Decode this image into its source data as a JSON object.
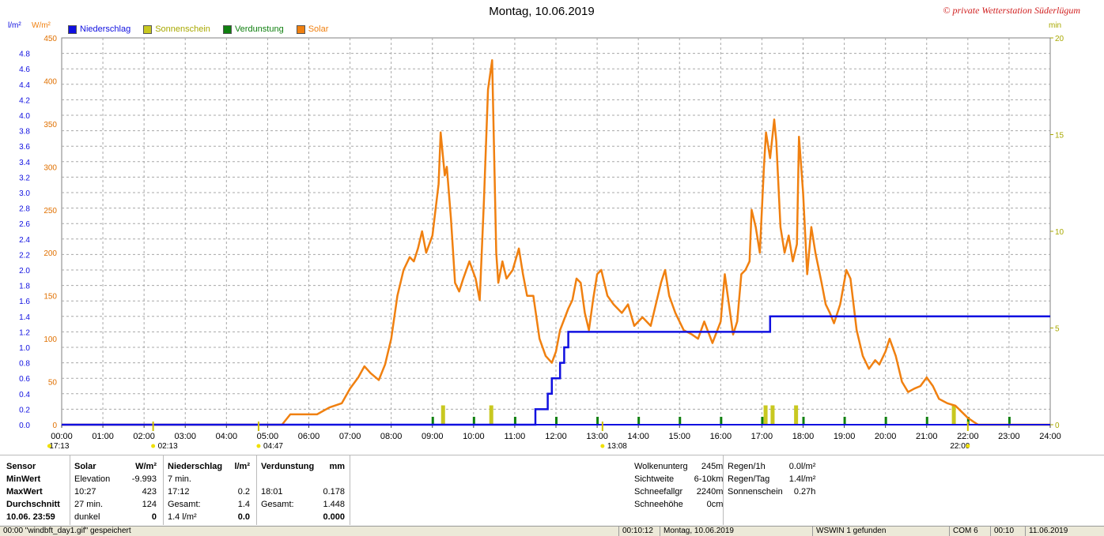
{
  "title": "Montag, 10.06.2019",
  "copyright": "© private Wetterstation Süderlügum",
  "units": {
    "left1": "l/m²",
    "left2": "W/m²",
    "right": "min"
  },
  "legend": [
    {
      "label": "Niederschlag",
      "color": "#1010e0",
      "text_color": "#1010e0"
    },
    {
      "label": "Sonnenschein",
      "color": "#c8c820",
      "text_color": "#a8a800"
    },
    {
      "label": "Verdunstung",
      "color": "#108010",
      "text_color": "#108010"
    },
    {
      "label": "Solar",
      "color": "#f08010",
      "text_color": "#f08010"
    }
  ],
  "chart_data": {
    "type": "line",
    "x_ticks": [
      "00:00",
      "01:00",
      "02:00",
      "03:00",
      "04:00",
      "05:00",
      "06:00",
      "07:00",
      "08:00",
      "09:00",
      "10:00",
      "11:00",
      "12:00",
      "13:00",
      "14:00",
      "15:00",
      "16:00",
      "17:00",
      "18:00",
      "19:00",
      "20:00",
      "21:00",
      "22:00",
      "23:00",
      "24:00"
    ],
    "y_solar_ticks": [
      "450",
      "400",
      "350",
      "300",
      "250",
      "200",
      "150",
      "100",
      "50",
      "0"
    ],
    "y_rain_ticks": [
      "4.8",
      "4.6",
      "4.4",
      "4.2",
      "4.0",
      "3.8",
      "3.6",
      "3.4",
      "3.2",
      "3.0",
      "2.8",
      "2.6",
      "2.4",
      "2.2",
      "2.0",
      "1.8",
      "1.6",
      "1.4",
      "1.2",
      "1.0",
      "0.8",
      "0.6",
      "0.4",
      "0.2",
      "0.0"
    ],
    "y_min_ticks": [
      "20",
      "15",
      "10",
      "5",
      "0"
    ],
    "xlim": [
      0,
      24
    ],
    "ylim_solar": [
      0,
      450
    ],
    "ylim_rain": [
      0,
      5.0
    ],
    "ylim_sun": [
      0,
      20
    ],
    "grid": true,
    "series": [
      {
        "name": "Solar",
        "color": "#f08010",
        "points": [
          [
            0,
            0
          ],
          [
            5.35,
            0
          ],
          [
            5.55,
            12
          ],
          [
            6.0,
            12
          ],
          [
            6.2,
            12
          ],
          [
            6.5,
            20
          ],
          [
            6.8,
            25
          ],
          [
            7.0,
            42
          ],
          [
            7.2,
            55
          ],
          [
            7.35,
            68
          ],
          [
            7.5,
            60
          ],
          [
            7.7,
            52
          ],
          [
            7.85,
            70
          ],
          [
            8.0,
            100
          ],
          [
            8.15,
            150
          ],
          [
            8.3,
            180
          ],
          [
            8.45,
            195
          ],
          [
            8.55,
            190
          ],
          [
            8.65,
            205
          ],
          [
            8.75,
            225
          ],
          [
            8.85,
            200
          ],
          [
            9.0,
            220
          ],
          [
            9.15,
            280
          ],
          [
            9.2,
            340
          ],
          [
            9.3,
            290
          ],
          [
            9.35,
            300
          ],
          [
            9.45,
            240
          ],
          [
            9.55,
            165
          ],
          [
            9.65,
            155
          ],
          [
            9.75,
            170
          ],
          [
            9.9,
            190
          ],
          [
            10.05,
            170
          ],
          [
            10.15,
            145
          ],
          [
            10.25,
            260
          ],
          [
            10.35,
            390
          ],
          [
            10.45,
            424
          ],
          [
            10.55,
            200
          ],
          [
            10.6,
            165
          ],
          [
            10.7,
            190
          ],
          [
            10.8,
            170
          ],
          [
            10.95,
            180
          ],
          [
            11.1,
            205
          ],
          [
            11.2,
            175
          ],
          [
            11.3,
            150
          ],
          [
            11.45,
            150
          ],
          [
            11.6,
            100
          ],
          [
            11.75,
            80
          ],
          [
            11.9,
            72
          ],
          [
            12.0,
            85
          ],
          [
            12.1,
            110
          ],
          [
            12.3,
            135
          ],
          [
            12.4,
            145
          ],
          [
            12.5,
            170
          ],
          [
            12.6,
            165
          ],
          [
            12.7,
            130
          ],
          [
            12.8,
            110
          ],
          [
            12.9,
            145
          ],
          [
            13.0,
            175
          ],
          [
            13.1,
            180
          ],
          [
            13.25,
            150
          ],
          [
            13.4,
            140
          ],
          [
            13.6,
            130
          ],
          [
            13.75,
            140
          ],
          [
            13.9,
            115
          ],
          [
            14.1,
            125
          ],
          [
            14.3,
            115
          ],
          [
            14.45,
            145
          ],
          [
            14.55,
            165
          ],
          [
            14.65,
            180
          ],
          [
            14.75,
            150
          ],
          [
            14.9,
            130
          ],
          [
            15.1,
            110
          ],
          [
            15.3,
            105
          ],
          [
            15.45,
            100
          ],
          [
            15.6,
            120
          ],
          [
            15.8,
            95
          ],
          [
            16.0,
            120
          ],
          [
            16.1,
            175
          ],
          [
            16.2,
            140
          ],
          [
            16.3,
            105
          ],
          [
            16.4,
            120
          ],
          [
            16.5,
            175
          ],
          [
            16.6,
            180
          ],
          [
            16.7,
            190
          ],
          [
            16.75,
            250
          ],
          [
            16.85,
            230
          ],
          [
            16.95,
            200
          ],
          [
            17.05,
            300
          ],
          [
            17.1,
            340
          ],
          [
            17.2,
            310
          ],
          [
            17.3,
            355
          ],
          [
            17.35,
            330
          ],
          [
            17.45,
            230
          ],
          [
            17.55,
            200
          ],
          [
            17.65,
            220
          ],
          [
            17.75,
            190
          ],
          [
            17.85,
            210
          ],
          [
            17.9,
            335
          ],
          [
            18.0,
            270
          ],
          [
            18.1,
            175
          ],
          [
            18.2,
            230
          ],
          [
            18.3,
            200
          ],
          [
            18.45,
            165
          ],
          [
            18.55,
            140
          ],
          [
            18.65,
            130
          ],
          [
            18.75,
            118
          ],
          [
            18.9,
            140
          ],
          [
            19.05,
            180
          ],
          [
            19.15,
            170
          ],
          [
            19.3,
            110
          ],
          [
            19.45,
            80
          ],
          [
            19.6,
            65
          ],
          [
            19.75,
            75
          ],
          [
            19.85,
            70
          ],
          [
            20.0,
            85
          ],
          [
            20.1,
            100
          ],
          [
            20.25,
            80
          ],
          [
            20.4,
            50
          ],
          [
            20.55,
            38
          ],
          [
            20.7,
            42
          ],
          [
            20.85,
            45
          ],
          [
            21.0,
            55
          ],
          [
            21.15,
            45
          ],
          [
            21.3,
            30
          ],
          [
            21.5,
            25
          ],
          [
            21.7,
            22
          ],
          [
            21.85,
            15
          ],
          [
            22.0,
            8
          ],
          [
            22.15,
            3
          ],
          [
            22.25,
            0
          ],
          [
            24,
            0
          ]
        ]
      },
      {
        "name": "Niederschlag",
        "color": "#1010e0",
        "points": [
          [
            0,
            0
          ],
          [
            11.5,
            0
          ],
          [
            11.5,
            0.2
          ],
          [
            11.8,
            0.2
          ],
          [
            11.8,
            0.4
          ],
          [
            11.9,
            0.4
          ],
          [
            11.9,
            0.6
          ],
          [
            12.1,
            0.6
          ],
          [
            12.1,
            0.8
          ],
          [
            12.2,
            0.8
          ],
          [
            12.2,
            1.0
          ],
          [
            12.3,
            1.0
          ],
          [
            12.3,
            1.2
          ],
          [
            17.2,
            1.2
          ],
          [
            17.2,
            1.4
          ],
          [
            24,
            1.4
          ]
        ]
      },
      {
        "name": "Sonnenschein",
        "color": "#c8c820",
        "bars": [
          [
            9.25,
            1.0
          ],
          [
            10.42,
            1.0
          ],
          [
            17.08,
            1.0
          ],
          [
            17.25,
            1.0
          ],
          [
            17.82,
            1.0
          ],
          [
            21.65,
            1.0
          ]
        ]
      },
      {
        "name": "Verdunstung",
        "color": "#108010",
        "ticks": [
          9.0,
          10.0,
          11.0,
          12.0,
          13.0,
          14.0,
          15.0,
          16.0,
          17.0,
          18.0,
          19.0,
          20.0,
          21.0,
          22.0,
          23.0
        ]
      }
    ],
    "markers": [
      {
        "label": "17:13",
        "time": -0.3
      },
      {
        "label": "02:13",
        "time": 2.22
      },
      {
        "label": "04:47",
        "time": 4.78
      },
      {
        "label": "13:08",
        "time": 13.13
      },
      {
        "label": "22:00",
        "time": 22.0
      }
    ]
  },
  "stats": {
    "sensor": {
      "title": "Sensor",
      "rows": [
        "MinWert",
        "MaxWert",
        "Durchschnitt",
        "10.06.  23:59"
      ]
    },
    "solar": {
      "title": "Solar",
      "unit": "W/m²",
      "rows": [
        [
          "Elevation",
          "-9.993"
        ],
        [
          "10:27",
          "423"
        ],
        [
          "27 min.",
          "124"
        ],
        [
          "dunkel",
          "0"
        ]
      ]
    },
    "rain": {
      "title": "Niederschlag",
      "unit": "l/m²",
      "rows": [
        [
          "7 min.",
          ""
        ],
        [
          "17:12",
          "0.2"
        ],
        [
          "Gesamt:",
          "1.4"
        ],
        [
          "1.4 l/m²",
          "0.0"
        ]
      ]
    },
    "evap": {
      "title": "Verdunstung",
      "unit": "mm",
      "rows": [
        [
          "",
          ""
        ],
        [
          "18:01",
          "0.178"
        ],
        [
          "Gesamt:",
          "1.448"
        ],
        [
          "",
          "0.000"
        ]
      ]
    },
    "cloud": [
      [
        "Wolkenunterg",
        "245m"
      ],
      [
        "Sichtweite",
        "6-10km"
      ],
      [
        "Schneefallgr",
        "2240m"
      ],
      [
        "Schneehöhe",
        "0cm"
      ]
    ],
    "rainrate": [
      [
        "Regen/1h",
        "0.0l/m²"
      ],
      [
        "Regen/Tag",
        "1.4l/m²"
      ],
      [
        "Sonnenschein",
        "0.27h"
      ]
    ]
  },
  "status": [
    {
      "text": "00:00 \"windbft_day1.gif\" gespeichert",
      "x": 0
    },
    {
      "text": "00:10:12",
      "x": 782
    },
    {
      "text": "Montag, 10.06.2019",
      "x": 834
    },
    {
      "text": "WSWIN 1 gefunden",
      "x": 1027
    },
    {
      "text": "COM 6",
      "x": 1200
    },
    {
      "text": "00:10",
      "x": 1252
    },
    {
      "text": "11.06.2019",
      "x": 1296
    }
  ]
}
